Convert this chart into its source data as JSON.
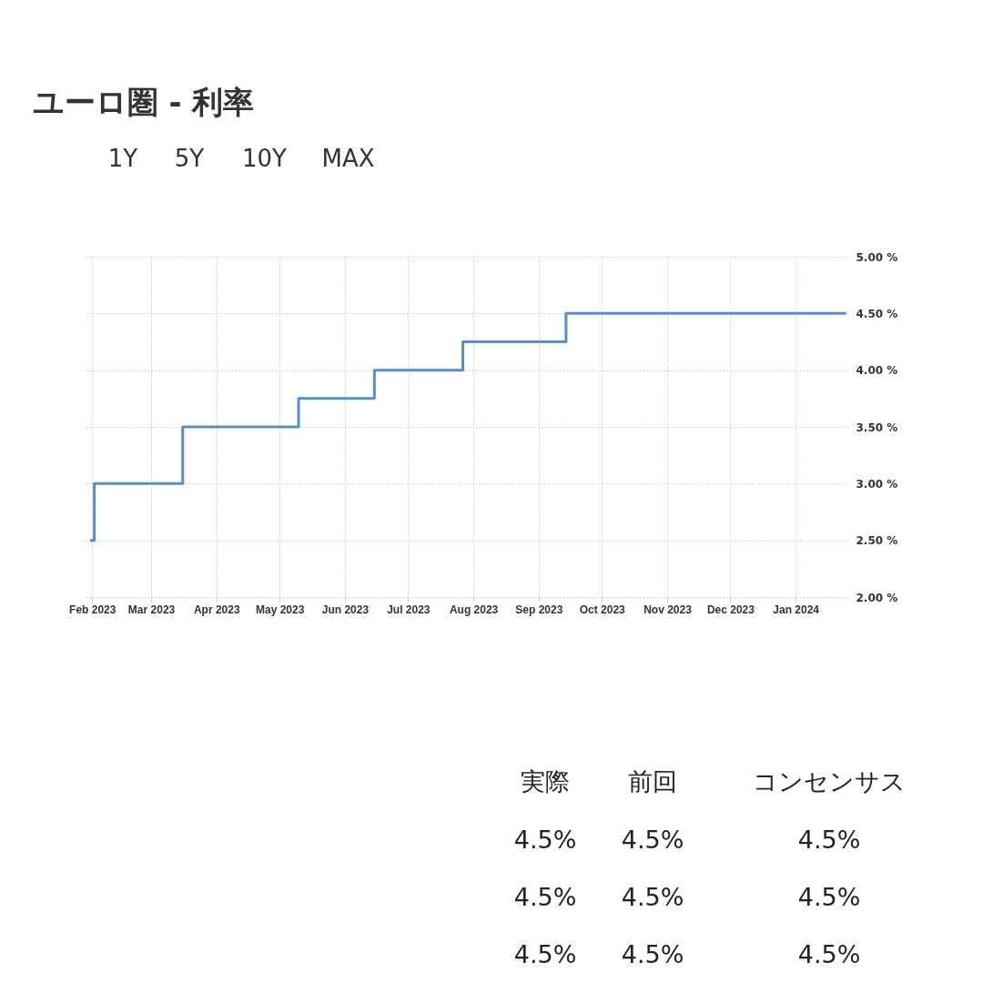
{
  "chart_data": [
    {
      "type": "step",
      "title": "ユーロ圏 - 利率",
      "annotations": [
        "1Y",
        "5Y",
        "10Y",
        "MAX"
      ],
      "x": [
        "2023-01-31",
        "2023-02-02",
        "2023-03-16",
        "2023-05-10",
        "2023-06-15",
        "2023-07-27",
        "2023-09-14",
        "2024-01-25"
      ],
      "values": [
        2.5,
        3.0,
        3.5,
        3.75,
        4.0,
        4.25,
        4.5,
        4.5
      ],
      "color": "#5b8ec4",
      "xlim": [
        "2023-01-28",
        "2024-01-26"
      ],
      "xticks": [
        {
          "value": "2023-02-01",
          "label": "Feb 2023"
        },
        {
          "value": "2023-03-01",
          "label": "Mar 2023"
        },
        {
          "value": "2023-04-01",
          "label": "Apr 2023"
        },
        {
          "value": "2023-05-01",
          "label": "May 2023"
        },
        {
          "value": "2023-06-01",
          "label": "Jun 2023"
        },
        {
          "value": "2023-07-01",
          "label": "Jul 2023"
        },
        {
          "value": "2023-08-01",
          "label": "Aug 2023"
        },
        {
          "value": "2023-09-01",
          "label": "Sep 2023"
        },
        {
          "value": "2023-10-01",
          "label": "Oct 2023"
        },
        {
          "value": "2023-11-01",
          "label": "Nov 2023"
        },
        {
          "value": "2023-12-01",
          "label": "Dec 2023"
        },
        {
          "value": "2024-01-01",
          "label": "Jan 2024"
        }
      ],
      "ylim": [
        2.0,
        5.0
      ],
      "yticks": [
        {
          "value": 2.0,
          "label": "2.00 %"
        },
        {
          "value": 2.5,
          "label": "2.50 %"
        },
        {
          "value": 3.0,
          "label": "3.00 %"
        },
        {
          "value": 3.5,
          "label": "3.50 %"
        },
        {
          "value": 4.0,
          "label": "4.00 %"
        },
        {
          "value": 4.5,
          "label": "4.50 %"
        },
        {
          "value": 5.0,
          "label": "5.00 %"
        }
      ],
      "grid": true
    },
    {
      "type": "other",
      "categories": [
        "実際",
        "前回",
        "コンセンサス"
      ],
      "annotations": [
        "4.5%",
        "4.5%",
        "4.5%",
        "4.5%",
        "4.5%",
        "4.5%",
        "4.5%",
        "4.5%",
        "4.5%"
      ]
    }
  ]
}
